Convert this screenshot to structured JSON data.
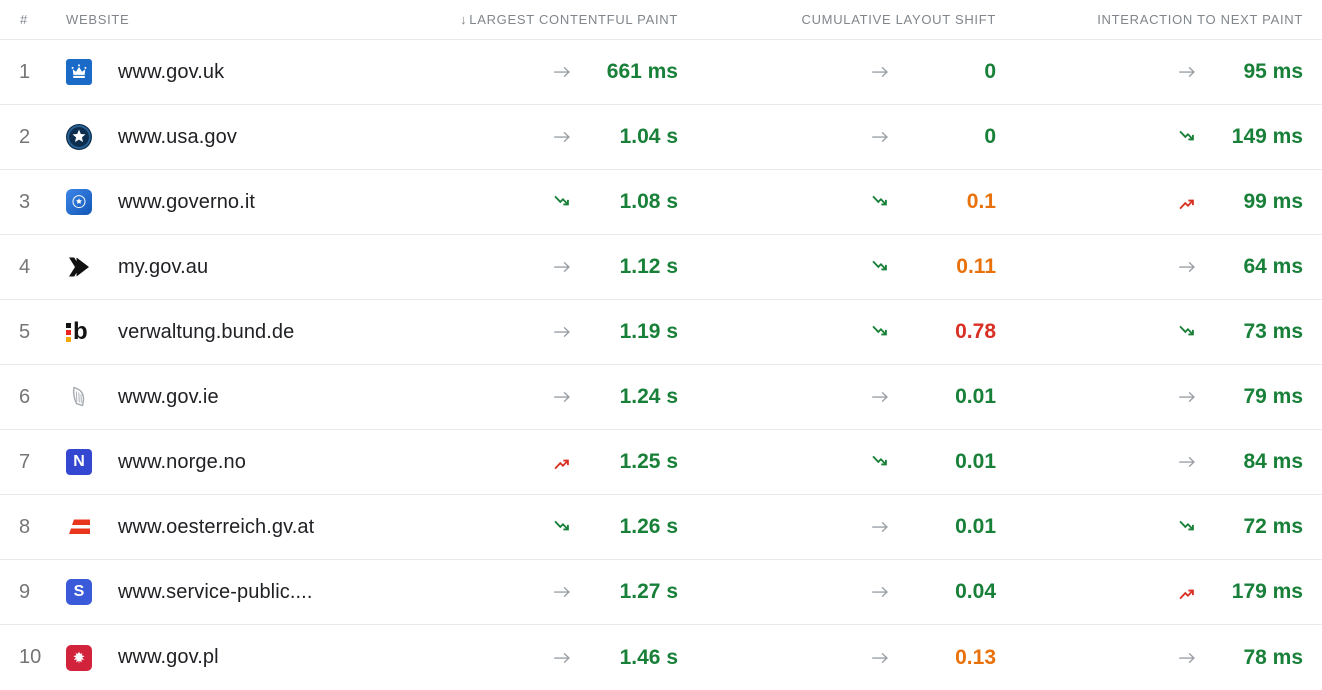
{
  "table": {
    "sort_icon": "↓",
    "columns": {
      "rank": "#",
      "website": "WEBSITE",
      "lcp": "LARGEST CONTENTFUL PAINT",
      "cls": "CUMULATIVE LAYOUT SHIFT",
      "inp": "INTERACTION TO NEXT PAINT"
    },
    "rows": [
      {
        "rank": "1",
        "website": "www.gov.uk",
        "favicon": {
          "type": "gov-uk"
        },
        "lcp": {
          "trend": "flat",
          "value": "661 ms",
          "color": "green"
        },
        "cls": {
          "trend": "flat",
          "value": "0",
          "color": "green"
        },
        "inp": {
          "trend": "flat",
          "value": "95 ms",
          "color": "green"
        }
      },
      {
        "rank": "2",
        "website": "www.usa.gov",
        "favicon": {
          "type": "usa-gov"
        },
        "lcp": {
          "trend": "flat",
          "value": "1.04 s",
          "color": "green"
        },
        "cls": {
          "trend": "flat",
          "value": "0",
          "color": "green"
        },
        "inp": {
          "trend": "down",
          "value": "149 ms",
          "color": "green"
        }
      },
      {
        "rank": "3",
        "website": "www.governo.it",
        "favicon": {
          "type": "governo-it"
        },
        "lcp": {
          "trend": "down",
          "value": "1.08 s",
          "color": "green"
        },
        "cls": {
          "trend": "down",
          "value": "0.1",
          "color": "orange"
        },
        "inp": {
          "trend": "up",
          "value": "99 ms",
          "color": "green"
        }
      },
      {
        "rank": "4",
        "website": "my.gov.au",
        "favicon": {
          "type": "my-gov-au"
        },
        "lcp": {
          "trend": "flat",
          "value": "1.12 s",
          "color": "green"
        },
        "cls": {
          "trend": "down",
          "value": "0.11",
          "color": "orange"
        },
        "inp": {
          "trend": "flat",
          "value": "64 ms",
          "color": "green"
        }
      },
      {
        "rank": "5",
        "website": "verwaltung.bund.de",
        "favicon": {
          "type": "bund-de",
          "letter": "b"
        },
        "lcp": {
          "trend": "flat",
          "value": "1.19 s",
          "color": "green"
        },
        "cls": {
          "trend": "down",
          "value": "0.78",
          "color": "red"
        },
        "inp": {
          "trend": "down",
          "value": "73 ms",
          "color": "green"
        }
      },
      {
        "rank": "6",
        "website": "www.gov.ie",
        "favicon": {
          "type": "gov-ie"
        },
        "lcp": {
          "trend": "flat",
          "value": "1.24 s",
          "color": "green"
        },
        "cls": {
          "trend": "flat",
          "value": "0.01",
          "color": "green"
        },
        "inp": {
          "trend": "flat",
          "value": "79 ms",
          "color": "green"
        }
      },
      {
        "rank": "7",
        "website": "www.norge.no",
        "favicon": {
          "type": "norge-no",
          "letter": "N"
        },
        "lcp": {
          "trend": "up",
          "value": "1.25 s",
          "color": "green"
        },
        "cls": {
          "trend": "down",
          "value": "0.01",
          "color": "green"
        },
        "inp": {
          "trend": "flat",
          "value": "84 ms",
          "color": "green"
        }
      },
      {
        "rank": "8",
        "website": "www.oesterreich.gv.at",
        "favicon": {
          "type": "oesterreich"
        },
        "lcp": {
          "trend": "down",
          "value": "1.26 s",
          "color": "green"
        },
        "cls": {
          "trend": "flat",
          "value": "0.01",
          "color": "green"
        },
        "inp": {
          "trend": "down",
          "value": "72 ms",
          "color": "green"
        }
      },
      {
        "rank": "9",
        "website": "www.service-public....",
        "favicon": {
          "type": "service-public",
          "letter": "S"
        },
        "lcp": {
          "trend": "flat",
          "value": "1.27 s",
          "color": "green"
        },
        "cls": {
          "trend": "flat",
          "value": "0.04",
          "color": "green"
        },
        "inp": {
          "trend": "up",
          "value": "179 ms",
          "color": "green"
        }
      },
      {
        "rank": "10",
        "website": "www.gov.pl",
        "favicon": {
          "type": "gov-pl"
        },
        "lcp": {
          "trend": "flat",
          "value": "1.46 s",
          "color": "green"
        },
        "cls": {
          "trend": "flat",
          "value": "0.13",
          "color": "orange"
        },
        "inp": {
          "trend": "flat",
          "value": "78 ms",
          "color": "green"
        }
      }
    ]
  },
  "palette": {
    "good_green": "#188038",
    "needs_improvement_orange": "#e8710a",
    "poor_red": "#d93025",
    "trend_flat_gray": "#9aa0a6",
    "header_gray": "#80868b",
    "rank_gray": "#757575",
    "site_text": "#202124",
    "divider": "#e8eaed"
  }
}
